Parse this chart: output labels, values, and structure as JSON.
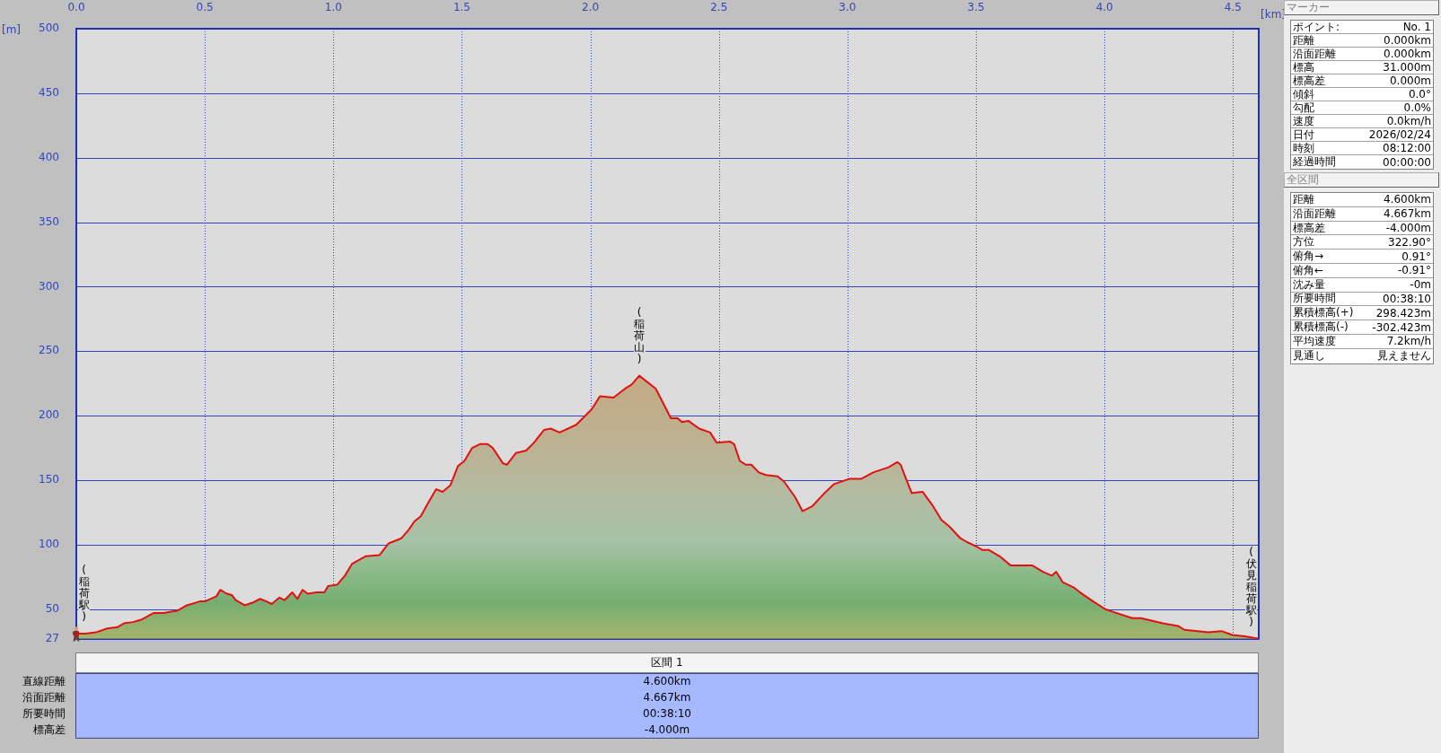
{
  "chart_data": [
    {
      "type": "area",
      "xlabel": "[km]",
      "ylabel": "[m]",
      "color": "#e41010",
      "x": [
        0,
        0.036,
        0.076,
        0.12,
        0.16,
        0.185,
        0.22,
        0.255,
        0.3,
        0.34,
        0.395,
        0.43,
        0.48,
        0.5,
        0.545,
        0.56,
        0.585,
        0.605,
        0.62,
        0.655,
        0.685,
        0.715,
        0.74,
        0.76,
        0.79,
        0.81,
        0.84,
        0.86,
        0.88,
        0.9,
        0.935,
        0.965,
        0.98,
        1.015,
        1.045,
        1.072,
        1.125,
        1.18,
        1.215,
        1.265,
        1.295,
        1.315,
        1.34,
        1.365,
        1.4,
        1.425,
        1.455,
        1.485,
        1.51,
        1.54,
        1.57,
        1.6,
        1.62,
        1.66,
        1.675,
        1.71,
        1.75,
        1.78,
        1.82,
        1.845,
        1.88,
        1.945,
        2.005,
        2.037,
        2.09,
        2.135,
        2.16,
        2.19,
        2.254,
        2.313,
        2.339,
        2.356,
        2.381,
        2.423,
        2.466,
        2.491,
        2.542,
        2.559,
        2.581,
        2.604,
        2.626,
        2.655,
        2.682,
        2.728,
        2.753,
        2.796,
        2.825,
        2.864,
        2.906,
        2.948,
        3.007,
        3.053,
        3.1,
        3.16,
        3.194,
        3.207,
        3.228,
        3.25,
        3.292,
        3.329,
        3.366,
        3.397,
        3.439,
        3.465,
        3.498,
        3.524,
        3.549,
        3.592,
        3.634,
        3.668,
        3.718,
        3.761,
        3.795,
        3.812,
        3.837,
        3.879,
        3.905,
        3.956,
        4.003,
        4.032,
        4.108,
        4.142,
        4.227,
        4.286,
        4.311,
        4.362,
        4.404,
        4.455,
        4.497,
        4.547,
        4.6
      ],
      "values": [
        31,
        31,
        32,
        35,
        36,
        39,
        40,
        42,
        47,
        47,
        49,
        53,
        56,
        56,
        60,
        65,
        62,
        61,
        57,
        53,
        55,
        58,
        56,
        54,
        59,
        57,
        63,
        58,
        65,
        62,
        63,
        63,
        68,
        69,
        76,
        85,
        91,
        92,
        101,
        105,
        112,
        118,
        122,
        131,
        143,
        141,
        146,
        161,
        165,
        175,
        178,
        178,
        175,
        163,
        162,
        171,
        173,
        179,
        189,
        190,
        187,
        193,
        205,
        215,
        214,
        221,
        224,
        231,
        221,
        198,
        198,
        195,
        196,
        190,
        187,
        179,
        180,
        178,
        165,
        162,
        162,
        156,
        154,
        153,
        149,
        137,
        126,
        130,
        139,
        147,
        151,
        151,
        156,
        160,
        164,
        162,
        151,
        140,
        141,
        131,
        119,
        114,
        105,
        102,
        99,
        96,
        96,
        91,
        84,
        84,
        84,
        79,
        76,
        79,
        71,
        67,
        63,
        56,
        50,
        48,
        43,
        43,
        39,
        37,
        34,
        33,
        32,
        33,
        30,
        29,
        27
      ],
      "xlim": [
        0,
        4.6
      ],
      "xticks": [
        {
          "value": 0,
          "label": "0.0"
        },
        0.5,
        {
          "value": 1,
          "label": "1.0"
        },
        1.5,
        {
          "value": 2,
          "label": "2.0"
        },
        2.5,
        {
          "value": 3,
          "label": "3.0"
        },
        3.5,
        {
          "value": 4,
          "label": "4.0"
        },
        4.5
      ],
      "ylim": [
        27,
        500
      ],
      "yticks": [
        27,
        50,
        100,
        150,
        200,
        250,
        300,
        350,
        400,
        450,
        500
      ],
      "grid": true,
      "annotations": [
        {
          "text": "(稲荷駅)",
          "x": 0,
          "y": 31
        },
        {
          "text": "(稲荷山)",
          "x": 2.19,
          "y": 231
        },
        {
          "text": "(伏見稲荷駅)",
          "x": 4.6,
          "y": 27
        }
      ]
    },
    {
      "type": "other",
      "title": "マーカー",
      "annotations": [
        "ポイント:",
        "No. 1",
        "距離",
        "0.000km",
        "沿面距離",
        "0.000km",
        "標高",
        "31.000m",
        "標高差",
        "0.000m",
        "傾斜",
        "0.0°",
        "勾配",
        "0.0%",
        "速度",
        "0.0km/h",
        "日付",
        "2026/02/24",
        "時刻",
        "08:12:00",
        "経過時間",
        "00:00:00"
      ]
    },
    {
      "type": "other",
      "title": "全区間",
      "annotations": [
        "距離",
        "4.600km",
        "沿面距離",
        "4.667km",
        "標高差",
        "-4.000m",
        "方位",
        "322.90°",
        "俯角→",
        "0.91°",
        "俯角←",
        "-0.91°",
        "沈み量",
        "-0m",
        "所要時間",
        "00:38:10",
        "累積標高(+)",
        "298.423m",
        "累積標高(-)",
        "-302.423m",
        "平均速度",
        "7.2km/h",
        "見通し",
        "見えません"
      ]
    },
    {
      "type": "other",
      "title": "区間 1",
      "annotations": [
        "直線距離",
        "4.600km",
        "沿面距離",
        "4.667km",
        "所要時間",
        "00:38:10",
        "標高差",
        "-4.000m"
      ]
    }
  ]
}
